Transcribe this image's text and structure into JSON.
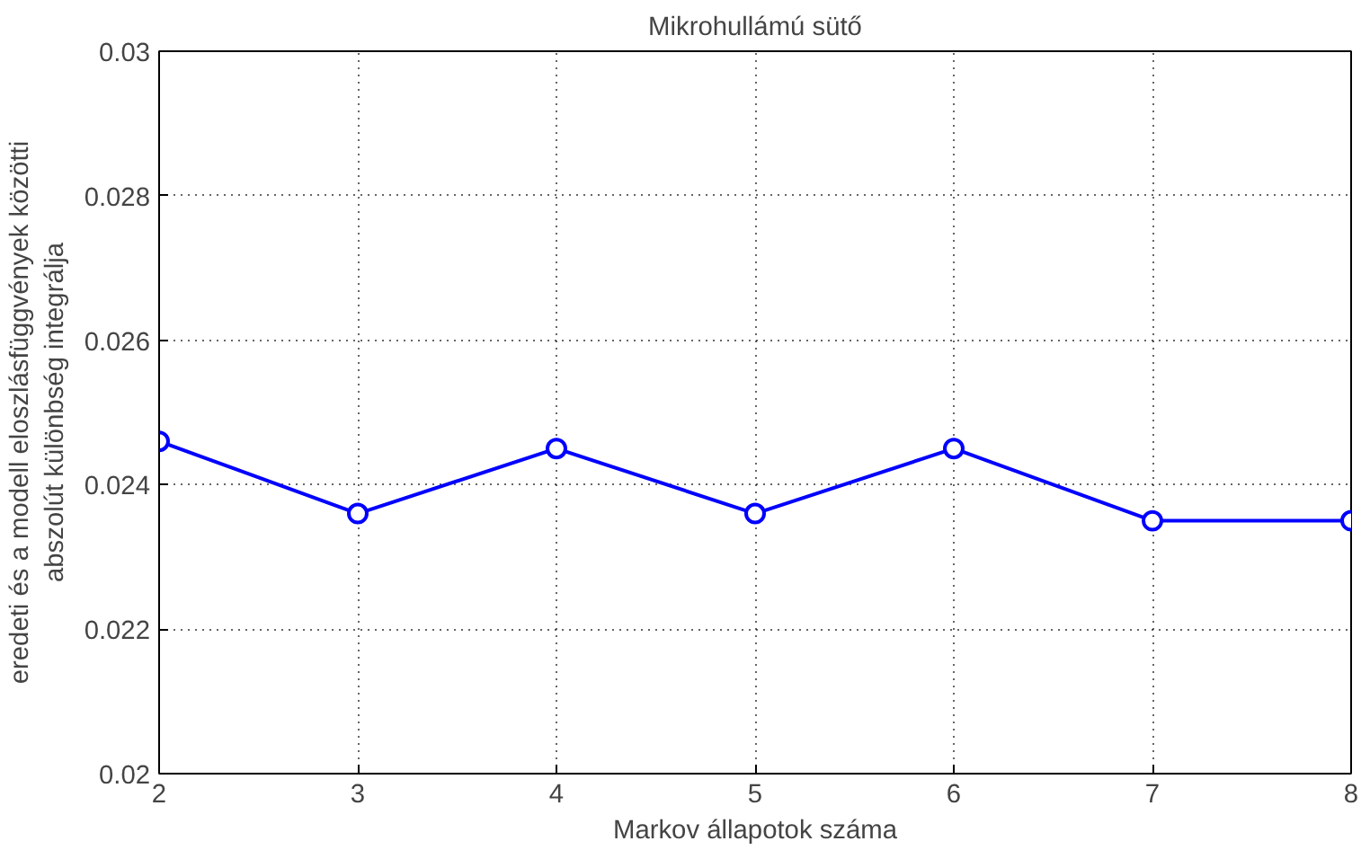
{
  "chart_data": {
    "type": "line",
    "title": "Mikrohullámú sütő",
    "xlabel": "Markov állapotok száma",
    "ylabel": "eredeti és a modell eloszlásfüggvények közötti\nabszolút különbség integrálja",
    "x": [
      2,
      3,
      4,
      5,
      6,
      7,
      8
    ],
    "series": [
      {
        "color": "#0000ff",
        "values": [
          0.0246,
          0.0236,
          0.0245,
          0.0236,
          0.0245,
          0.0235,
          0.0235
        ]
      }
    ],
    "xlim": [
      2,
      8
    ],
    "xticks": [
      2,
      3,
      4,
      5,
      6,
      7,
      8
    ],
    "ylim": [
      0.02,
      0.03
    ],
    "yticks": [
      0.02,
      0.022,
      0.024,
      0.026,
      0.028,
      0.03
    ],
    "grid": true,
    "marker": "circle",
    "line_style": "solid"
  }
}
